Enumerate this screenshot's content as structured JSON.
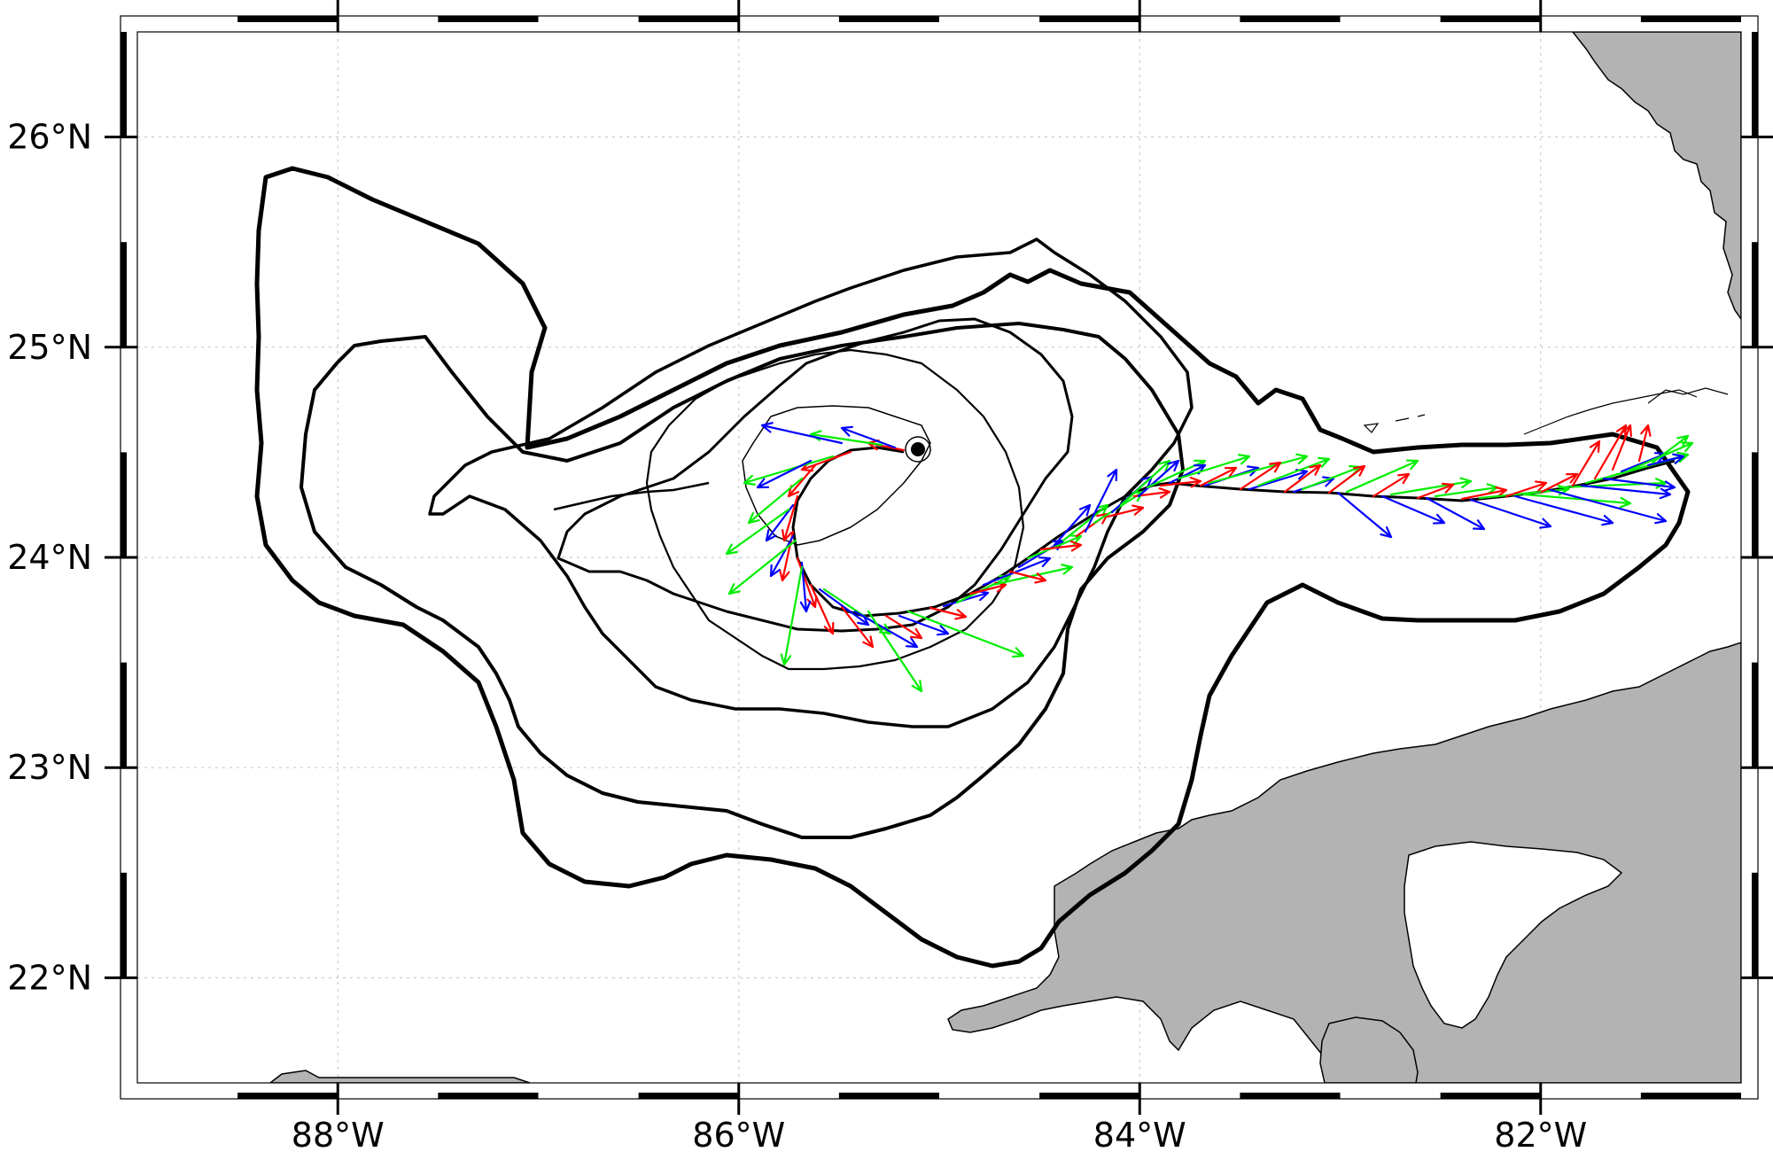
{
  "map": {
    "lon_range": [
      -89,
      -81
    ],
    "lat_range": [
      21.5,
      26.5
    ],
    "grid_lines": "dotted",
    "land_color": "#b3b3b3",
    "contour_color": "#000000",
    "origin_marker": {
      "lon": -85.08,
      "lat": 24.51
    },
    "x_ticks": [
      {
        "lon": -88,
        "label": "88°W"
      },
      {
        "lon": -86,
        "label": "86°W"
      },
      {
        "lon": -84,
        "label": "84°W"
      },
      {
        "lon": -82,
        "label": "82°W"
      }
    ],
    "y_ticks": [
      {
        "lat": 26,
        "label": "26°N"
      },
      {
        "lat": 25,
        "label": "25°N"
      },
      {
        "lat": 24,
        "label": "24°N"
      },
      {
        "lat": 23,
        "label": "23°N"
      },
      {
        "lat": 22,
        "label": "22°N"
      }
    ],
    "vector_colors": {
      "red": "#ff0000",
      "blue": "#0000ff",
      "green": "#00ee00"
    }
  }
}
